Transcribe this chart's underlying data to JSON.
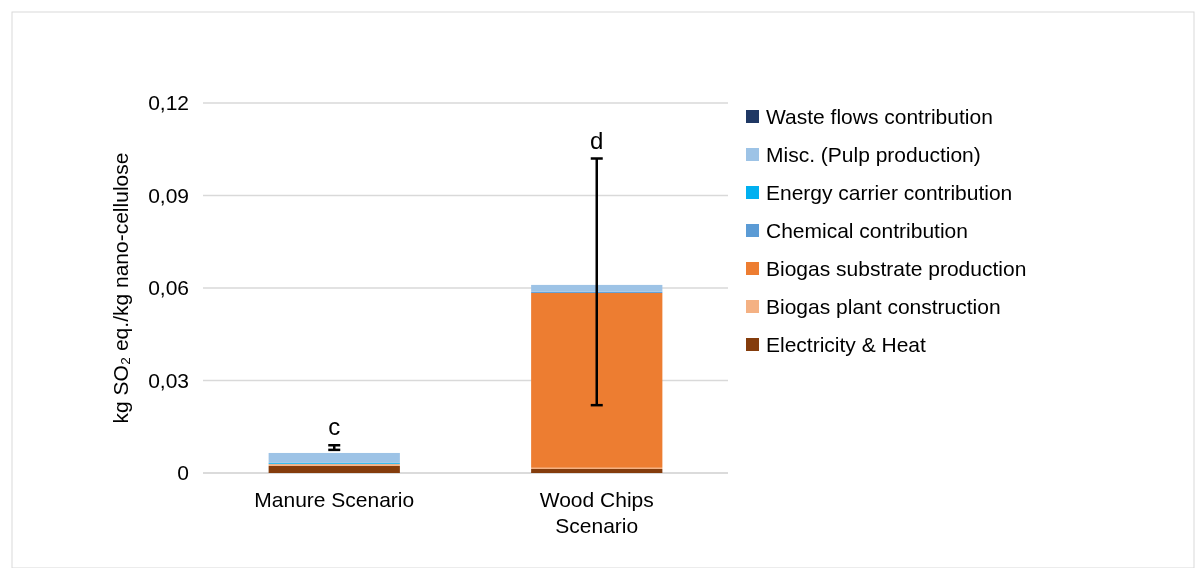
{
  "chart_data": {
    "type": "bar",
    "stacked": true,
    "ylabel": "kg SO₂ eq./kg nano-cellulose",
    "categories": [
      "Manure Scenario",
      "Wood Chips Scenario"
    ],
    "series": [
      {
        "name": "Electricity & Heat",
        "color": "#843c0c",
        "values": [
          0.0023,
          0.0013
        ]
      },
      {
        "name": "Biogas plant construction",
        "color": "#f4b183",
        "values": [
          0.0006,
          0.0004
        ]
      },
      {
        "name": "Biogas substrate production",
        "color": "#ed7d31",
        "values": [
          0,
          0.0567
        ]
      },
      {
        "name": "Chemical contribution",
        "color": "#5b9bd5",
        "values": [
          0.0001,
          0.0004
        ]
      },
      {
        "name": "Energy carrier contribution",
        "color": "#00b0f0",
        "values": [
          0.0003,
          0
        ]
      },
      {
        "name": "Misc. (Pulp production)",
        "color": "#9dc3e6",
        "values": [
          0.0032,
          0.0022
        ]
      },
      {
        "name": "Waste flows contribution",
        "color": "#1f3864",
        "values": [
          0,
          0
        ],
        "errors": [
          [
            0.0075,
            0.009
          ],
          [
            0.022,
            0.102
          ]
        ]
      }
    ],
    "ylim": [
      0,
      0.12
    ],
    "yticks": [
      {
        "value": 0,
        "label": "0"
      },
      {
        "value": 0.03,
        "label": "0,03"
      },
      {
        "value": 0.06,
        "label": "0,06"
      },
      {
        "value": 0.09,
        "label": "0,09"
      },
      {
        "value": 0.12,
        "label": "0,12"
      }
    ],
    "grid": "y",
    "legend": "right",
    "annotations": [
      "c",
      "d"
    ]
  }
}
